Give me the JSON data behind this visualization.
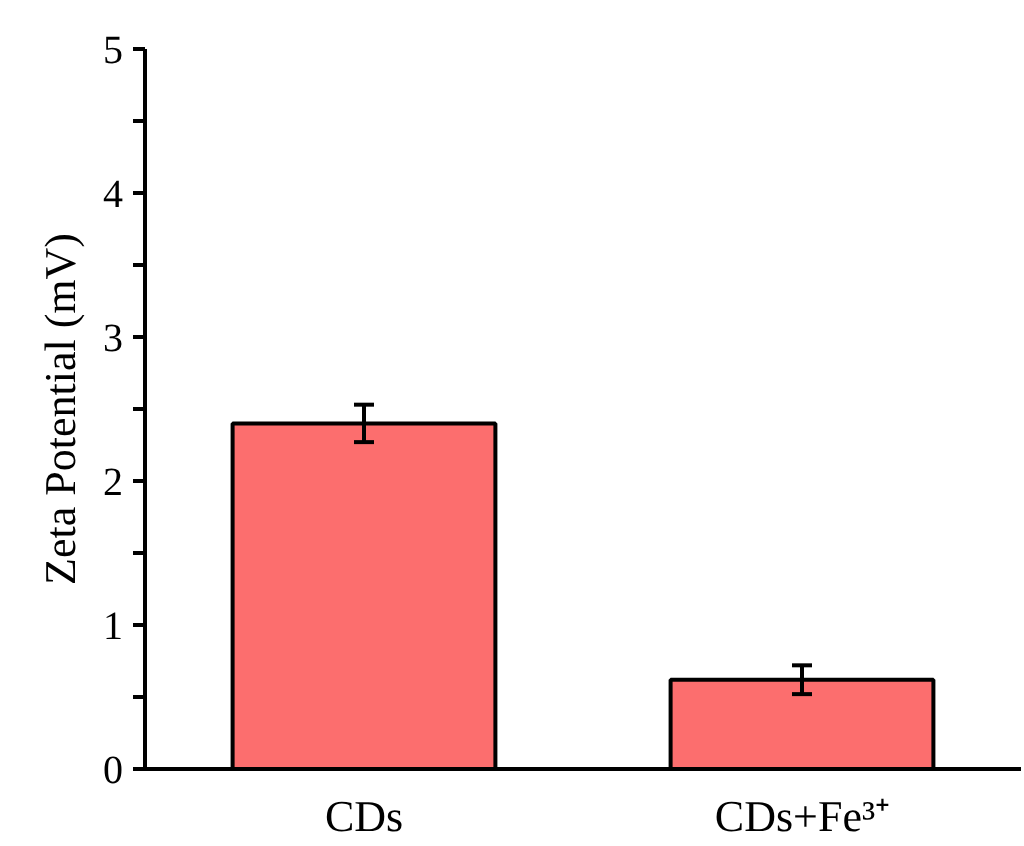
{
  "chart_data": {
    "type": "bar",
    "ylabel": "Zeta Potential (mV)",
    "categories": [
      "CDs",
      "CDs+Fe³⁺"
    ],
    "values": [
      2.4,
      0.62
    ],
    "errors": [
      0.13,
      0.1
    ],
    "color": "#fc6e6e",
    "ylim": [
      0,
      5
    ],
    "yticks": [
      0,
      {
        "value": 0.5,
        "label": null
      },
      1,
      {
        "value": 1.5,
        "label": null
      },
      2,
      {
        "value": 2.5,
        "label": null
      },
      3,
      {
        "value": 3.5,
        "label": null
      },
      4,
      {
        "value": 4.5,
        "label": null
      },
      5
    ],
    "grid": false
  }
}
